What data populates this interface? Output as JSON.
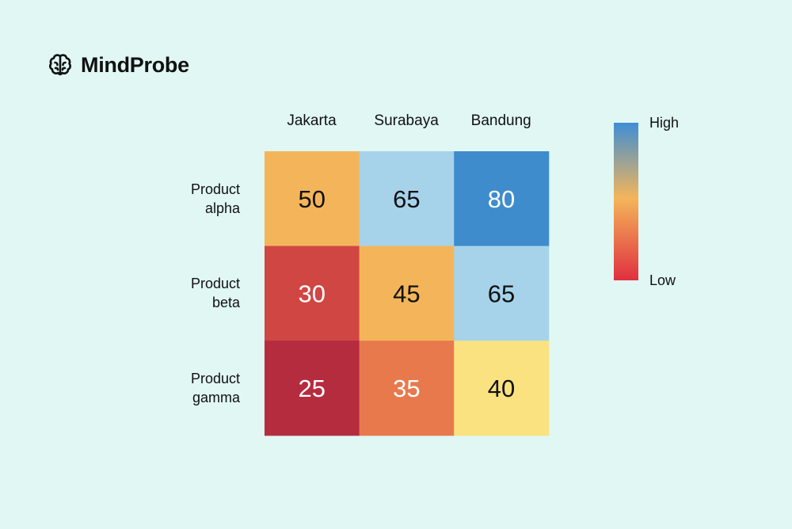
{
  "brand": {
    "name": "MindProbe",
    "icon": "brain-icon"
  },
  "chart_data": {
    "type": "heatmap",
    "title": "",
    "columns": [
      "Jakarta",
      "Surabaya",
      "Bandung"
    ],
    "rows": [
      [
        "Product",
        "alpha"
      ],
      [
        "Product",
        "beta"
      ],
      [
        "Product",
        "gamma"
      ]
    ],
    "values": [
      [
        50,
        65,
        80
      ],
      [
        30,
        45,
        65
      ],
      [
        25,
        35,
        40
      ]
    ],
    "colors": [
      [
        "#f4b55a",
        "#a6d3ea",
        "#3f8ccc"
      ],
      [
        "#d04643",
        "#f4b55a",
        "#a6d3ea"
      ],
      [
        "#b52c3e",
        "#e8794d",
        "#fae281"
      ]
    ],
    "text_colors": [
      [
        "#111111",
        "#111111",
        "#ffffff"
      ],
      [
        "#ffffff",
        "#111111",
        "#111111"
      ],
      [
        "#ffffff",
        "#ffffff",
        "#111111"
      ]
    ],
    "legend": {
      "high_label": "High",
      "low_label": "Low",
      "gradient": [
        "#3f8ed4",
        "#f4b55a",
        "#e0303f"
      ]
    }
  }
}
